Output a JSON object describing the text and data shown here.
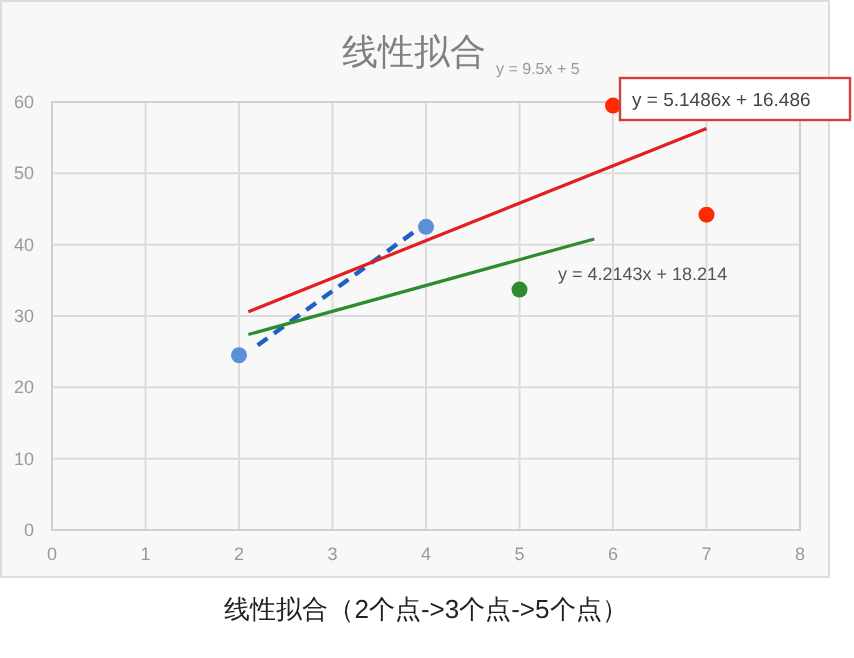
{
  "chart_data": {
    "type": "scatter",
    "title": "线性拟合",
    "xlim": [
      0,
      8
    ],
    "xticks": [
      0,
      1,
      2,
      3,
      4,
      5,
      6,
      7,
      8
    ],
    "ylim": [
      0,
      60
    ],
    "yticks": [
      0,
      10,
      20,
      30,
      40,
      50,
      60
    ],
    "grid": true,
    "series": [
      {
        "color": "#5b8fd8",
        "marker": "circle",
        "x": [
          2,
          4
        ],
        "values": [
          24.5,
          42.5
        ]
      },
      {
        "color": "#2e8b2e",
        "marker": "circle",
        "x": [
          5
        ],
        "values": [
          33.7
        ]
      },
      {
        "color": "#ff2a00",
        "marker": "circle",
        "x": [
          6,
          7
        ],
        "values": [
          59.5,
          44.2
        ]
      },
      {
        "type": "line",
        "color": "#1f5fc8",
        "line_style": "dashed",
        "x": [
          2.2,
          4
        ],
        "values": [
          25.9,
          43
        ]
      },
      {
        "type": "line",
        "color": "#2e8b2e",
        "line_style": "solid",
        "x": [
          2.1,
          5.8
        ],
        "values": [
          27.4,
          40.8
        ]
      },
      {
        "type": "line",
        "color": "#e02020",
        "line_style": "solid",
        "x": [
          2.1,
          7
        ],
        "values": [
          30.6,
          56.3
        ]
      }
    ],
    "annotations": [
      "y = 9.5x + 5",
      "y = 5.1486x + 16.486",
      "y = 4.2143x + 18.214",
      "线性拟合（2个点->3个点->5个点）"
    ]
  }
}
